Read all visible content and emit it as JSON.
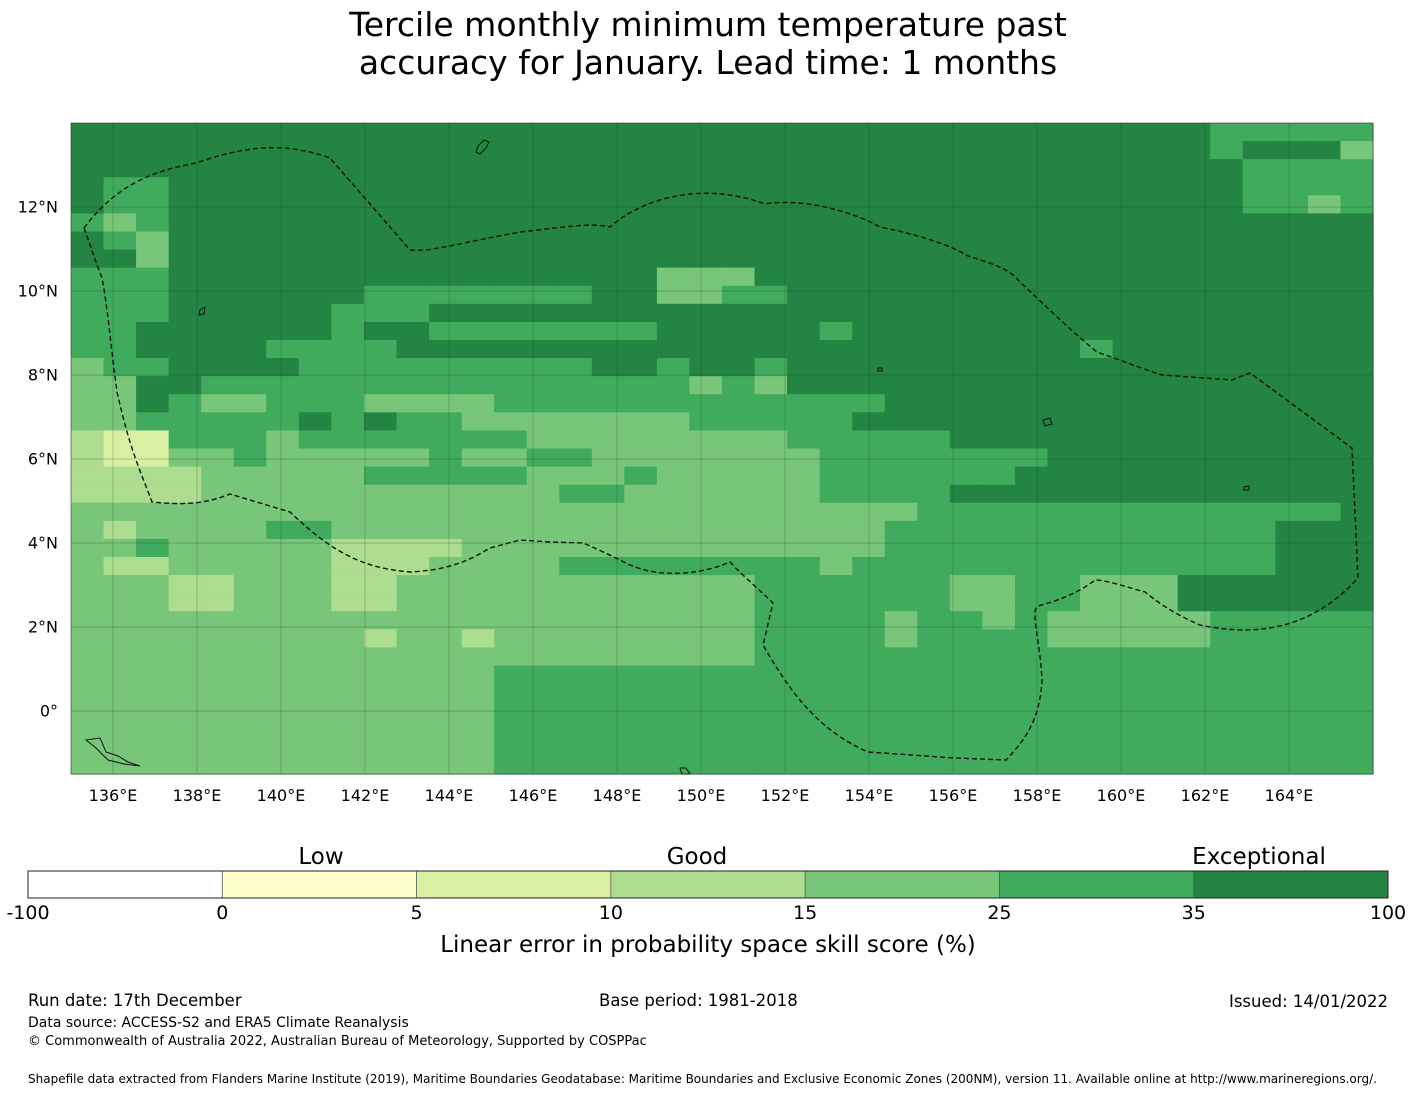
{
  "title_line1": "Tercile monthly minimum temperature past",
  "title_line2": "accuracy for January. Lead time: 1 months",
  "map": {
    "lon_range": [
      135,
      166
    ],
    "lat_range": [
      -1.5,
      14
    ],
    "x_ticks": [
      "136°E",
      "138°E",
      "140°E",
      "142°E",
      "144°E",
      "146°E",
      "148°E",
      "150°E",
      "152°E",
      "154°E",
      "156°E",
      "158°E",
      "160°E",
      "162°E",
      "164°E"
    ],
    "y_ticks": [
      "12°N",
      "10°N",
      "8°N",
      "6°N",
      "4°N",
      "2°N",
      "0°"
    ],
    "category_colors": [
      "#ffffcc",
      "#d9f0a3",
      "#addd8e",
      "#78c679",
      "#41ab5d",
      "#238443"
    ],
    "grid_rows": [
      "5555555555555555555555555555555555544444",
      "5555555555555555555555555555555555545553",
      "5555555555555555555555555555555555554444",
      "5445555555555555555555555555555555554444",
      "5445555555555555555555555555555555554434",
      "4345555555555555555555555555555555555555",
      "5435555555555555555555555555555555555555",
      "5535555555555555555555555555555555555555",
      "4445555555555555553335555555555555555555",
      "4445555554444444553344555555555555555555",
      "4445555544455555555555555555555555555555",
      "4455555545544444445555545555555555555555",
      "4455554444555555555555555555555455555555",
      "3445555444444444554554555555555555555555",
      "3355444444444444444343555555555555555555",
      "3354334443333444444444444555555555555555",
      "3344444545443333333444445555555555555555",
      "2114443444444433333333444445555555555555",
      "2113343333343344333333344444445555555555",
      "2222333334444433343333344444455555555555",
      "2222333333333334433333344445555555555555",
      "3333333333333333333333333344444444444445",
      "3233334433333333333333333444444444444555",
      "3343333322223333333333333444444444444555",
      "3223333322233334444444434444444444444555",
      "3332233322333333333334444443344333555555",
      "3332233322333333333334444443344333555555",
      "3333333333333333333334444344343333344444",
      "3333333332332333333334444344443333344444",
      "3333333333333333333334444444444444444444",
      "3333333333333444444444444444444444444444",
      "3333333333333444444444444444444444444444",
      "3333333333333444444444444444444444444444",
      "3333333333333444444444444444444444444444",
      "3333333333333444444444444444444444444444",
      "3333333333333444444444444444444444444444"
    ]
  },
  "colorbar": {
    "category_low": "Low",
    "category_good": "Good",
    "category_exceptional": "Exceptional",
    "boundaries": [
      "-100",
      "0",
      "5",
      "10",
      "15",
      "25",
      "35",
      "100"
    ],
    "colors": [
      "#ffffff",
      "#ffffcc",
      "#d9f0a3",
      "#addd8e",
      "#78c679",
      "#41ab5d",
      "#238443"
    ],
    "label": "Linear error in probability space skill score (%)"
  },
  "footer": {
    "run_date": "Run date: 17th December",
    "base_period": "Base period: 1981-2018",
    "issued": "Issued: 14/01/2022",
    "data_source": "Data source: ACCESS-S2 and ERA5 Climate Reanalysis",
    "copyright": "© Commonwealth of Australia 2022, Australian Bureau of Meteorology, Supported by COSPPac",
    "shapefile": "Shapefile data extracted from Flanders Marine Institute (2019), Maritime Boundaries Geodatabase: Maritime Boundaries and Exclusive Economic Zones (200NM), version 11. Available online at http://www.marineregions.org/."
  }
}
